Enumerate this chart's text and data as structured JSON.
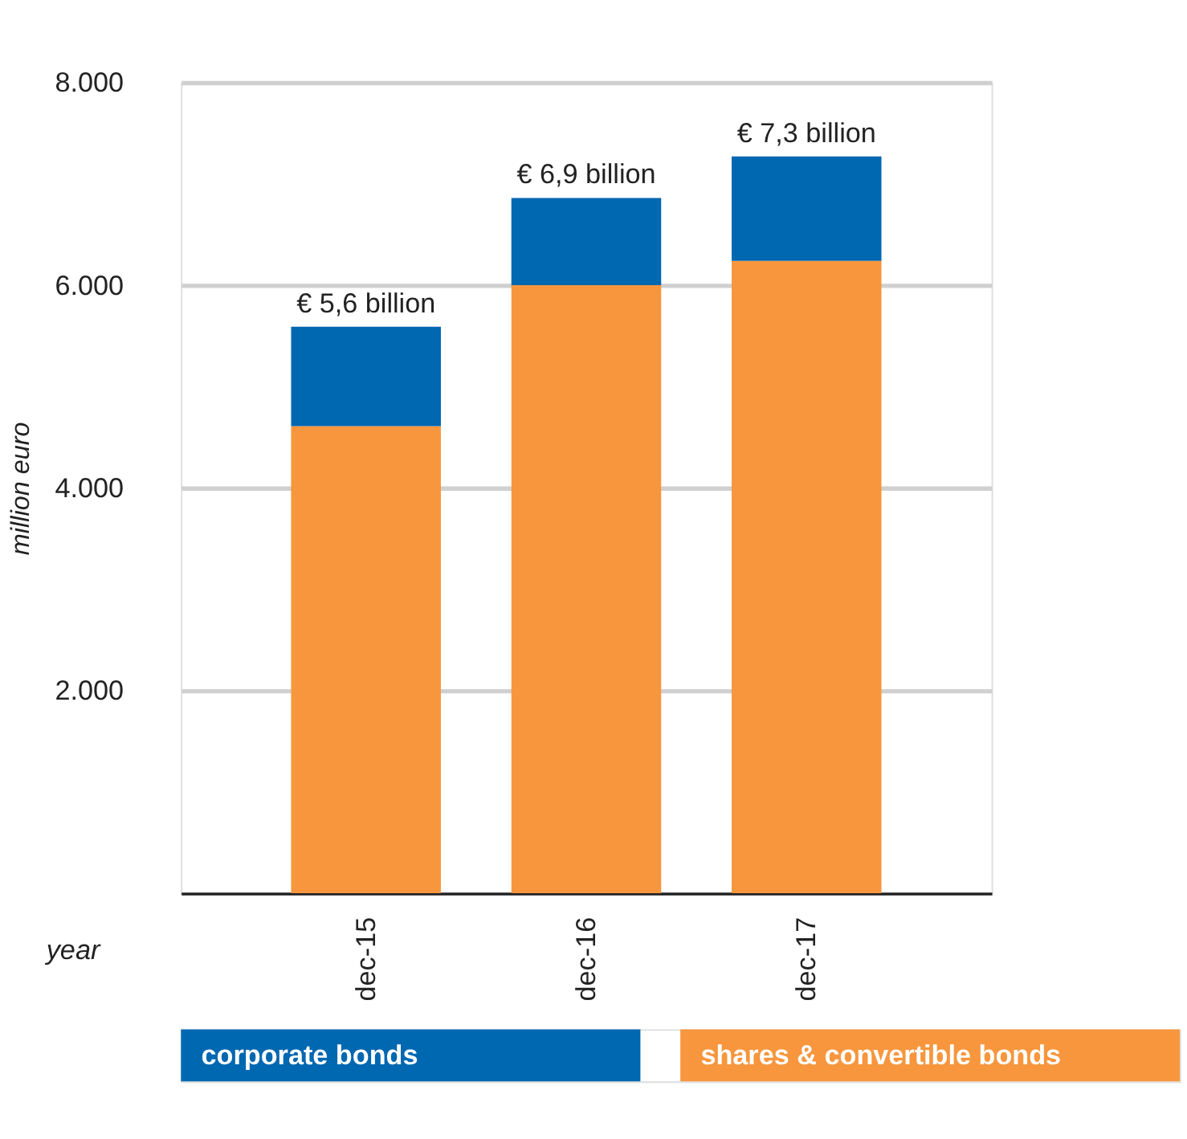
{
  "chart_data": {
    "type": "bar",
    "stacked": true,
    "xlabel": "year",
    "ylabel": "million euro",
    "categories": [
      "dec-15",
      "dec-16",
      "dec-17"
    ],
    "series": [
      {
        "name": "shares & convertible bonds",
        "color": "#f7963d",
        "values": [
          4610,
          6000,
          6240
        ]
      },
      {
        "name": "corporate bonds",
        "color": "#0067b1",
        "values": [
          980,
          860,
          1030
        ]
      }
    ],
    "totals": [
      "€ 5,6 billion",
      "€ 6,9 billion",
      "€ 7,3 billion"
    ],
    "ylim": [
      0,
      8000
    ],
    "yticks": [
      {
        "value": 2000,
        "label": "2.000"
      },
      {
        "value": 4000,
        "label": "4.000"
      },
      {
        "value": 6000,
        "label": "6.000"
      },
      {
        "value": 8000,
        "label": "8.000"
      }
    ],
    "grid": "y",
    "legend": "bottom"
  }
}
